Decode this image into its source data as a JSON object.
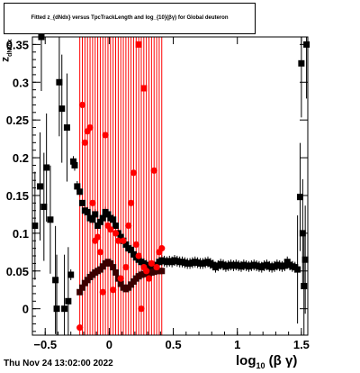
{
  "title": "Fitted  z_{dNdx}  versus TpcTrackLength and log_{10}(βγ) for Global deuteron",
  "footer": "Thu Nov 24 13:02:00 2022",
  "xlabel": "log_{10} (β γ)",
  "ylabel": "z_{dN/dx}",
  "colors": {
    "black": "#000000",
    "red": "#ff0000",
    "dark": "#3a0000"
  },
  "chart_data": {
    "type": "scatter",
    "xlim": [
      -0.6,
      1.55
    ],
    "ylim": [
      -0.035,
      0.36
    ],
    "xticks": [
      -0.5,
      0,
      0.5,
      1,
      1.5
    ],
    "xtick_labels": [
      "−0.5",
      "0",
      "0.5",
      "1",
      "1.5"
    ],
    "yticks": [
      0,
      0.05,
      0.1,
      0.15,
      0.2,
      0.25,
      0.3,
      0.35
    ],
    "ytick_labels": [
      "0",
      "0.05",
      "0.1",
      "0.15",
      "0.2",
      "0.25",
      "0.3",
      "0.35"
    ],
    "series": [
      {
        "marker": "square",
        "color": "#000000",
        "points": [
          [
            -0.58,
            0.11
          ],
          [
            -0.54,
            0.162
          ],
          [
            -0.53,
            0.36
          ],
          [
            -0.51,
            0.135
          ],
          [
            -0.49,
            0.187
          ],
          [
            -0.46,
            0.118
          ],
          [
            -0.42,
            0.038
          ],
          [
            -0.41,
            0.0
          ],
          [
            -0.39,
            0.3
          ],
          [
            -0.37,
            0.265
          ],
          [
            -0.35,
            0.0
          ],
          [
            -0.33,
            0.24
          ],
          [
            -0.32,
            0.01
          ],
          [
            -0.3,
            0.045
          ],
          [
            -0.28,
            0.195
          ],
          [
            -0.27,
            0.19
          ],
          [
            -0.25,
            0.162
          ],
          [
            -0.23,
            0.155
          ],
          [
            -0.21,
            0.14
          ],
          [
            -0.19,
            0.13
          ],
          [
            -0.17,
            0.128
          ],
          [
            -0.15,
            0.12
          ],
          [
            -0.13,
            0.118
          ],
          [
            -0.11,
            0.125
          ],
          [
            -0.09,
            0.11
          ],
          [
            -0.07,
            0.115
          ],
          [
            -0.05,
            0.12
          ],
          [
            -0.03,
            0.128
          ],
          [
            -0.01,
            0.125
          ],
          [
            0.01,
            0.12
          ],
          [
            0.03,
            0.118
          ],
          [
            0.05,
            0.11
          ],
          [
            0.07,
            0.1
          ],
          [
            0.09,
            0.095
          ],
          [
            0.11,
            0.09
          ],
          [
            0.13,
            0.085
          ],
          [
            0.15,
            0.08
          ],
          [
            0.17,
            0.078
          ],
          [
            0.19,
            0.072
          ],
          [
            0.21,
            0.068
          ],
          [
            0.23,
            0.065
          ],
          [
            0.25,
            0.062
          ],
          [
            0.27,
            0.06
          ],
          [
            0.29,
            0.058
          ],
          [
            0.31,
            0.057
          ],
          [
            0.33,
            0.055
          ],
          [
            0.35,
            0.056
          ],
          [
            0.37,
            0.058
          ],
          [
            0.39,
            0.062
          ],
          [
            0.41,
            0.064
          ],
          [
            0.43,
            0.063
          ],
          [
            0.45,
            0.062
          ],
          [
            0.47,
            0.063
          ],
          [
            0.49,
            0.062
          ],
          [
            0.51,
            0.064
          ],
          [
            0.53,
            0.063
          ],
          [
            0.55,
            0.062
          ],
          [
            0.57,
            0.062
          ],
          [
            0.59,
            0.061
          ],
          [
            0.61,
            0.06
          ],
          [
            0.63,
            0.06
          ],
          [
            0.65,
            0.061
          ],
          [
            0.67,
            0.062
          ],
          [
            0.69,
            0.061
          ],
          [
            0.71,
            0.06
          ],
          [
            0.73,
            0.06
          ],
          [
            0.75,
            0.061
          ],
          [
            0.77,
            0.062
          ],
          [
            0.79,
            0.06
          ],
          [
            0.81,
            0.058
          ],
          [
            0.83,
            0.055
          ],
          [
            0.85,
            0.057
          ],
          [
            0.87,
            0.059
          ],
          [
            0.89,
            0.058
          ],
          [
            0.91,
            0.056
          ],
          [
            0.93,
            0.057
          ],
          [
            0.95,
            0.058
          ],
          [
            0.97,
            0.057
          ],
          [
            0.99,
            0.058
          ],
          [
            1.01,
            0.057
          ],
          [
            1.03,
            0.056
          ],
          [
            1.05,
            0.058
          ],
          [
            1.07,
            0.057
          ],
          [
            1.09,
            0.056
          ],
          [
            1.11,
            0.057
          ],
          [
            1.13,
            0.058
          ],
          [
            1.15,
            0.057
          ],
          [
            1.17,
            0.056
          ],
          [
            1.19,
            0.055
          ],
          [
            1.21,
            0.057
          ],
          [
            1.23,
            0.058
          ],
          [
            1.25,
            0.056
          ],
          [
            1.27,
            0.055
          ],
          [
            1.29,
            0.056
          ],
          [
            1.31,
            0.058
          ],
          [
            1.33,
            0.057
          ],
          [
            1.35,
            0.056
          ],
          [
            1.37,
            0.057
          ],
          [
            1.39,
            0.062
          ],
          [
            1.41,
            0.058
          ],
          [
            1.43,
            0.056
          ],
          [
            1.45,
            0.055
          ],
          [
            1.47,
            0.052
          ],
          [
            1.49,
            0.148
          ],
          [
            1.5,
            0.325
          ],
          [
            1.51,
            0.1
          ],
          [
            1.52,
            0.03
          ],
          [
            1.53,
            0.065
          ],
          [
            1.54,
            0.35
          ]
        ]
      },
      {
        "marker": "square",
        "color": "#3a0000",
        "points": [
          [
            -0.23,
            0.022
          ],
          [
            -0.21,
            0.028
          ],
          [
            -0.19,
            0.034
          ],
          [
            -0.17,
            0.038
          ],
          [
            -0.15,
            0.042
          ],
          [
            -0.13,
            0.045
          ],
          [
            -0.11,
            0.048
          ],
          [
            -0.09,
            0.05
          ],
          [
            -0.07,
            0.052
          ],
          [
            -0.05,
            0.056
          ],
          [
            -0.03,
            0.06
          ],
          [
            -0.01,
            0.062
          ],
          [
            0.01,
            0.06
          ],
          [
            0.03,
            0.055
          ],
          [
            0.05,
            0.048
          ],
          [
            0.07,
            0.04
          ],
          [
            0.09,
            0.033
          ],
          [
            0.11,
            0.028
          ],
          [
            0.13,
            0.026
          ],
          [
            0.15,
            0.028
          ],
          [
            0.17,
            0.032
          ],
          [
            0.19,
            0.036
          ],
          [
            0.21,
            0.04
          ],
          [
            0.23,
            0.043
          ],
          [
            0.25,
            0.045
          ],
          [
            0.27,
            0.046
          ],
          [
            0.29,
            0.046
          ],
          [
            0.31,
            0.047
          ],
          [
            0.33,
            0.048
          ],
          [
            0.35,
            0.049
          ],
          [
            0.37,
            0.05
          ],
          [
            0.39,
            0.05
          ],
          [
            0.41,
            0.05
          ]
        ]
      },
      {
        "marker": "circle",
        "color": "#ff0000",
        "points": [
          [
            -0.21,
            0.27
          ],
          [
            -0.19,
            0.22
          ],
          [
            -0.17,
            0.235
          ],
          [
            -0.15,
            0.24
          ],
          [
            -0.23,
            -0.025
          ],
          [
            -0.13,
            0.14
          ],
          [
            -0.11,
            0.09
          ],
          [
            -0.09,
            0.095
          ],
          [
            -0.07,
            0.075
          ],
          [
            -0.05,
            0.022
          ],
          [
            -0.03,
            0.23
          ],
          [
            -0.01,
            0.11
          ],
          [
            0.01,
            0.105
          ],
          [
            0.03,
            0.025
          ],
          [
            0.05,
            0.1
          ],
          [
            0.07,
            0.09
          ],
          [
            0.09,
            0.04
          ],
          [
            0.11,
            0.09
          ],
          [
            0.13,
            0.055
          ],
          [
            0.15,
            0.11
          ],
          [
            0.17,
            0.14
          ],
          [
            0.19,
            0.18
          ],
          [
            0.21,
            0.085
          ],
          [
            0.23,
            0.07
          ],
          [
            0.25,
            0.0
          ],
          [
            0.27,
            0.055
          ],
          [
            0.29,
            0.05
          ],
          [
            0.31,
            0.04
          ],
          [
            0.33,
            0.06
          ],
          [
            0.35,
            0.183
          ],
          [
            0.37,
            0.055
          ],
          [
            0.39,
            0.075
          ],
          [
            0.41,
            0.08
          ]
        ]
      },
      {
        "marker": "square",
        "color": "#ff0000",
        "points": [
          [
            0.23,
            0.35
          ],
          [
            0.27,
            0.292
          ]
        ]
      }
    ]
  }
}
